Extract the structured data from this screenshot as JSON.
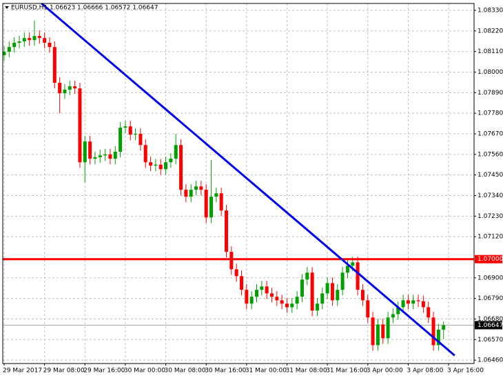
{
  "chart_data": {
    "type": "candlestick",
    "title": "EURUSD,H1  1.06623 1.06666 1.06572 1.06647",
    "open": [
      1.0809,
      1.08109,
      1.08134,
      1.08157,
      1.08164,
      1.08182,
      1.08171,
      1.08193,
      1.08182,
      1.08157,
      1.08134,
      1.07943,
      1.07887,
      1.07906,
      1.07924,
      1.07913,
      1.07518,
      1.07629,
      1.07537,
      1.07545,
      1.07555,
      1.0756,
      1.07537,
      1.07574,
      1.07703,
      1.0771,
      1.07666,
      1.0767,
      1.0761,
      1.07518,
      1.075,
      1.07505,
      1.07481,
      1.07518,
      1.07537,
      1.0761,
      1.07371,
      1.07334,
      1.07371,
      1.07389,
      1.07371,
      1.07223,
      1.07334,
      1.07352,
      1.0726,
      1.07039,
      1.06946,
      1.06909,
      1.06836,
      1.06762,
      1.06799,
      1.06836,
      1.06854,
      1.06817,
      1.06799,
      1.0678,
      1.06762,
      1.06743,
      1.06762,
      1.06799,
      1.06891,
      1.06928,
      1.06725,
      1.06762,
      1.06817,
      1.06872,
      1.0678,
      1.06836,
      1.06928,
      1.06965,
      1.06983,
      1.06836,
      1.0678,
      1.06688,
      1.0654,
      1.06651,
      1.06577,
      1.06688,
      1.06706,
      1.06743,
      1.0678,
      1.06762,
      1.0678,
      1.06775,
      1.06743,
      1.06688,
      1.0654,
      1.06623
    ],
    "high": [
      1.08139,
      1.08164,
      1.08187,
      1.08194,
      1.08212,
      1.08212,
      1.08275,
      1.08223,
      1.08212,
      1.08187,
      1.08164,
      1.07973,
      1.07936,
      1.07954,
      1.07954,
      1.07943,
      1.07659,
      1.07659,
      1.07575,
      1.07585,
      1.0759,
      1.0759,
      1.07604,
      1.07733,
      1.0774,
      1.0774,
      1.077,
      1.077,
      1.0764,
      1.07548,
      1.07535,
      1.07535,
      1.07548,
      1.07567,
      1.0767,
      1.0764,
      1.07401,
      1.07401,
      1.07419,
      1.07419,
      1.07401,
      1.0753,
      1.07382,
      1.07382,
      1.0729,
      1.07069,
      1.06976,
      1.06939,
      1.06866,
      1.06829,
      1.06866,
      1.06884,
      1.06884,
      1.06847,
      1.06829,
      1.0681,
      1.06792,
      1.06792,
      1.06829,
      1.06921,
      1.06958,
      1.06958,
      1.06792,
      1.06847,
      1.06902,
      1.06902,
      1.06866,
      1.06958,
      1.06995,
      1.07013,
      1.07013,
      1.06866,
      1.0681,
      1.06718,
      1.06681,
      1.06681,
      1.06718,
      1.06736,
      1.06773,
      1.0681,
      1.0681,
      1.0681,
      1.0681,
      1.06805,
      1.06773,
      1.06718,
      1.06653,
      1.06666
    ],
    "low": [
      1.0806,
      1.08079,
      1.08104,
      1.08127,
      1.08134,
      1.08141,
      1.08141,
      1.08152,
      1.08127,
      1.08104,
      1.07913,
      1.0778,
      1.07857,
      1.07876,
      1.07883,
      1.07488,
      1.0741,
      1.07507,
      1.07507,
      1.07515,
      1.07525,
      1.07507,
      1.07507,
      1.07544,
      1.07673,
      1.07636,
      1.07636,
      1.0758,
      1.07488,
      1.0747,
      1.0747,
      1.07451,
      1.07451,
      1.07488,
      1.07507,
      1.07341,
      1.07304,
      1.07304,
      1.07341,
      1.07341,
      1.07193,
      1.07193,
      1.07304,
      1.0723,
      1.07009,
      1.06916,
      1.06879,
      1.06806,
      1.06732,
      1.06732,
      1.06769,
      1.06806,
      1.06787,
      1.06769,
      1.0675,
      1.06732,
      1.06713,
      1.06713,
      1.06732,
      1.06769,
      1.06861,
      1.06695,
      1.06695,
      1.06732,
      1.06787,
      1.0675,
      1.0675,
      1.06806,
      1.06898,
      1.06935,
      1.06806,
      1.0675,
      1.06658,
      1.0651,
      1.0651,
      1.06547,
      1.06547,
      1.06658,
      1.06676,
      1.06713,
      1.06732,
      1.06732,
      1.06745,
      1.06713,
      1.06658,
      1.0651,
      1.0651,
      1.06572
    ],
    "close": [
      1.08109,
      1.08134,
      1.08157,
      1.08164,
      1.08182,
      1.08171,
      1.08193,
      1.08182,
      1.08157,
      1.08134,
      1.07943,
      1.07887,
      1.07906,
      1.07924,
      1.07913,
      1.07518,
      1.07629,
      1.07537,
      1.07545,
      1.07555,
      1.0756,
      1.07537,
      1.07574,
      1.07703,
      1.0771,
      1.07666,
      1.0767,
      1.0761,
      1.07518,
      1.075,
      1.07505,
      1.07481,
      1.07518,
      1.07537,
      1.0761,
      1.07371,
      1.07334,
      1.07371,
      1.07389,
      1.07371,
      1.07223,
      1.07334,
      1.07352,
      1.0726,
      1.07039,
      1.06946,
      1.06909,
      1.06836,
      1.06762,
      1.06799,
      1.06836,
      1.06854,
      1.06817,
      1.06799,
      1.0678,
      1.06762,
      1.06743,
      1.06762,
      1.06799,
      1.06891,
      1.06928,
      1.06725,
      1.06762,
      1.06817,
      1.06872,
      1.0678,
      1.06836,
      1.06928,
      1.06965,
      1.06983,
      1.06836,
      1.0678,
      1.06688,
      1.0654,
      1.06651,
      1.06577,
      1.06688,
      1.06706,
      1.06743,
      1.0678,
      1.06762,
      1.0678,
      1.06775,
      1.06743,
      1.06688,
      1.0654,
      1.06623,
      1.06647
    ],
    "up_color": "#00a000",
    "down_color": "#ff0000",
    "ylim": [
      1.06442,
      1.08367
    ],
    "yticks": [
      {
        "value": 1.0833,
        "label": "1.08330"
      },
      {
        "value": 1.0822,
        "label": "1.08220"
      },
      {
        "value": 1.0811,
        "label": "1.08110"
      },
      {
        "value": 1.08,
        "label": "1.08000"
      },
      {
        "value": 1.0789,
        "label": "1.07890"
      },
      {
        "value": 1.0778,
        "label": "1.07780"
      },
      {
        "value": 1.0767,
        "label": "1.07670"
      },
      {
        "value": 1.0756,
        "label": "1.07560"
      },
      {
        "value": 1.0745,
        "label": "1.07450"
      },
      {
        "value": 1.0734,
        "label": "1.07340"
      },
      {
        "value": 1.0723,
        "label": "1.07230"
      },
      {
        "value": 1.0712,
        "label": "1.07120"
      },
      {
        "value": 1.069,
        "label": "1.06900"
      },
      {
        "value": 1.0679,
        "label": "1.06790"
      },
      {
        "value": 1.0668,
        "label": "1.06680"
      },
      {
        "value": 1.0657,
        "label": "1.06570"
      },
      {
        "value": 1.0646,
        "label": "1.06460"
      }
    ],
    "xticks": [
      {
        "value": 0,
        "label": "29 Mar 2017"
      },
      {
        "value": 8,
        "label": "29 Mar 08:00"
      },
      {
        "value": 16,
        "label": "29 Mar 16:00"
      },
      {
        "value": 24,
        "label": "30 Mar 00:00"
      },
      {
        "value": 32,
        "label": "30 Mar 08:00"
      },
      {
        "value": 40,
        "label": "30 Mar 16:00"
      },
      {
        "value": 48,
        "label": "31 Mar 00:00"
      },
      {
        "value": 56,
        "label": "31 Mar 08:00"
      },
      {
        "value": 64,
        "label": "31 Mar 16:00"
      },
      {
        "value": 72,
        "label": "3 Apr 00:00"
      },
      {
        "value": 80,
        "label": "3 Apr 08:00"
      },
      {
        "value": 88,
        "label": "3 Apr 16:00"
      }
    ],
    "grid": true,
    "hline": {
      "value": 1.07,
      "label": "1.07000",
      "color": "#ff0000"
    },
    "bid": {
      "value": 1.06647,
      "label": "1.06647"
    },
    "trendline": {
      "x": [
        7.4,
        89.2
      ],
      "y": [
        1.08367,
        1.06485
      ],
      "color": "#0000ee"
    }
  }
}
